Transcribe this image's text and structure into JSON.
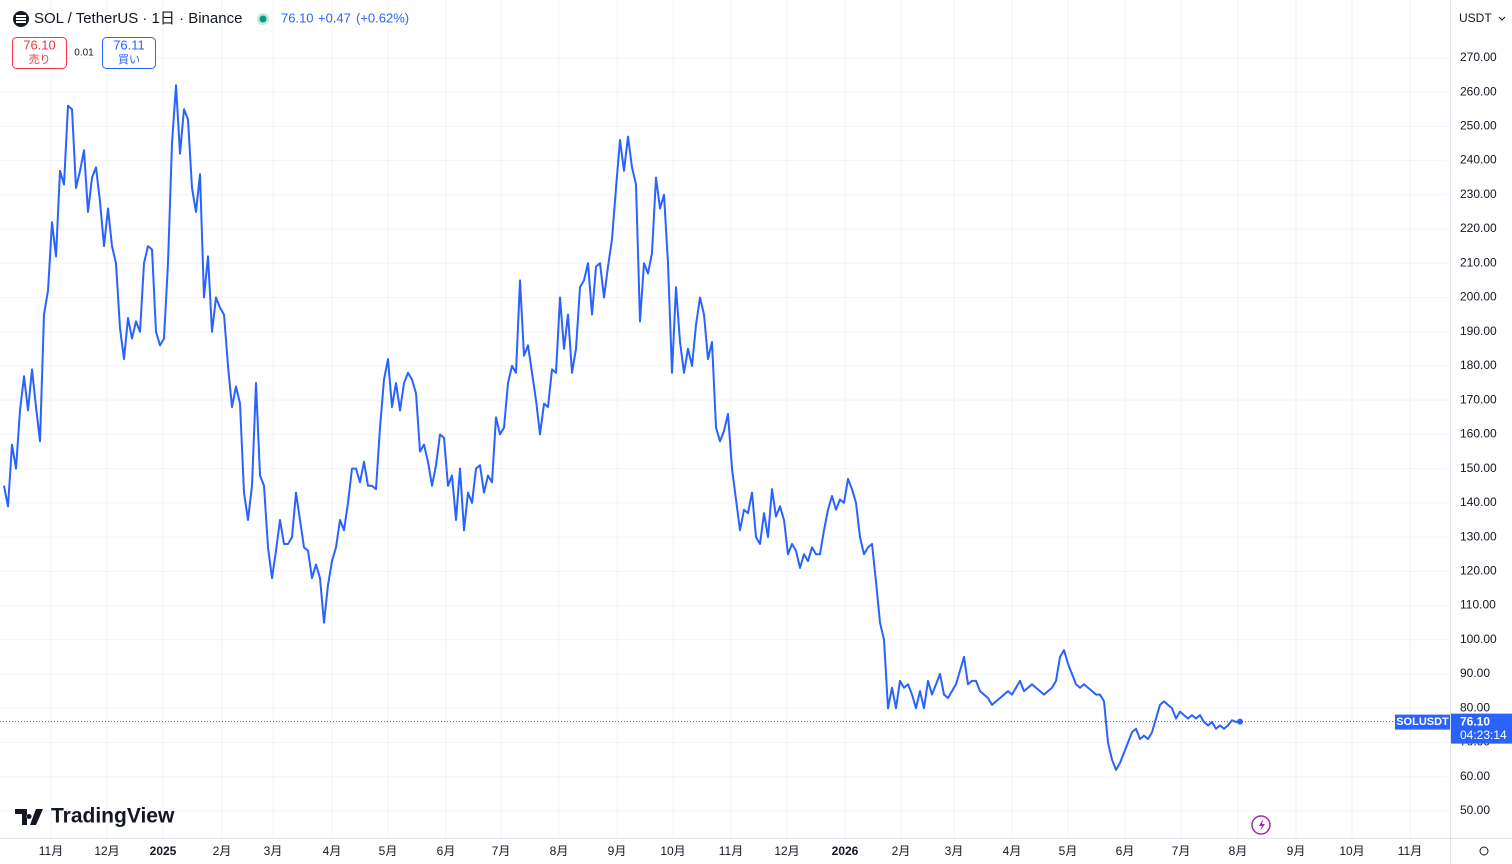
{
  "header": {
    "symbol": "SOL / TetherUS · 1日 · Binance",
    "price": "76.10",
    "change": "+0.47",
    "change_pct": "(+0.62%)",
    "sell_price": "76.10",
    "sell_label": "売り",
    "spread": "0.01",
    "buy_price": "76.11",
    "buy_label": "買い",
    "currency": "USDT",
    "logo": "TradingView"
  },
  "chart_data": {
    "type": "line",
    "series": [
      {
        "name": "SOLUSDT",
        "color": "#2962ff",
        "values": [
          145,
          139,
          157,
          150,
          167,
          177,
          167,
          179,
          168,
          158,
          195,
          202,
          222,
          212,
          237,
          233,
          256,
          255,
          232,
          237,
          243,
          225,
          235,
          238,
          228,
          215,
          226,
          215,
          210,
          191,
          182,
          194,
          188,
          193,
          190,
          210,
          215,
          214,
          190,
          186,
          188,
          210,
          245,
          262,
          242,
          255,
          252,
          232,
          225,
          236,
          200,
          212,
          190,
          200,
          197,
          195,
          180,
          168,
          174,
          169,
          143,
          135,
          145,
          175,
          148,
          145,
          127,
          118,
          126,
          135,
          128,
          128,
          130,
          143,
          135,
          127,
          126,
          118,
          122,
          118,
          105,
          116,
          123,
          127,
          135,
          132,
          140,
          150,
          150,
          146,
          152,
          145,
          145,
          144,
          162,
          176,
          182,
          168,
          175,
          167,
          175,
          178,
          176,
          172,
          155,
          157,
          152,
          145,
          151,
          160,
          159,
          145,
          148,
          135,
          150,
          132,
          143,
          140,
          150,
          151,
          143,
          148,
          146,
          165,
          160,
          162,
          175,
          180,
          178,
          205,
          183,
          186,
          178,
          170,
          160,
          169,
          168,
          179,
          178,
          200,
          185,
          195,
          178,
          185,
          203,
          205,
          210,
          195,
          209,
          210,
          200,
          209,
          217,
          232,
          246,
          237,
          247,
          238,
          233,
          193,
          210,
          207,
          213,
          235,
          226,
          230,
          210,
          178,
          203,
          187,
          178,
          185,
          180,
          192,
          200,
          195,
          182,
          187,
          162,
          158,
          161,
          166,
          150,
          141,
          132,
          138,
          137,
          143,
          130,
          128,
          137,
          130,
          144,
          136,
          139,
          135,
          125,
          128,
          126,
          121,
          125,
          123,
          127,
          125,
          125,
          132,
          138,
          142,
          138,
          141,
          140,
          147,
          144,
          140,
          130,
          125,
          127,
          128,
          117,
          105,
          100,
          80,
          86,
          80,
          88,
          86,
          87,
          84,
          80,
          85,
          80,
          88,
          84,
          87,
          90,
          84,
          83,
          85,
          87,
          91,
          95,
          87,
          88,
          88,
          85,
          84,
          83,
          81,
          82,
          83,
          84,
          85,
          84,
          86,
          88,
          85,
          86,
          87,
          86,
          85,
          84,
          85,
          86,
          88,
          95,
          97,
          93,
          90,
          87,
          86,
          87,
          86,
          85,
          84,
          84,
          82,
          70,
          65,
          62,
          64,
          67,
          70,
          73,
          74,
          71,
          72,
          71,
          73,
          77,
          81,
          82,
          81,
          80,
          77,
          79,
          78,
          77,
          78,
          77,
          78,
          76,
          75,
          76,
          74,
          75,
          74,
          75,
          76.5,
          76,
          76.1
        ]
      }
    ],
    "xticks": [
      {
        "value": 11.75,
        "label": "11月"
      },
      {
        "value": 25.75,
        "label": "12月"
      },
      {
        "value": 39.75,
        "label": "2025"
      },
      {
        "value": 54.5,
        "label": "2月"
      },
      {
        "value": 67.25,
        "label": "3月"
      },
      {
        "value": 82,
        "label": "4月"
      },
      {
        "value": 96,
        "label": "5月"
      },
      {
        "value": 110.5,
        "label": "6月"
      },
      {
        "value": 124.25,
        "label": "7月"
      },
      {
        "value": 138.75,
        "label": "8月"
      },
      {
        "value": 153.25,
        "label": "9月"
      },
      {
        "value": 167.25,
        "label": "10月"
      },
      {
        "value": 181.75,
        "label": "11月"
      },
      {
        "value": 195.75,
        "label": "12月"
      },
      {
        "value": 210.25,
        "label": "2026"
      },
      {
        "value": 224.25,
        "label": "2月"
      },
      {
        "value": 237.5,
        "label": "3月"
      },
      {
        "value": 252,
        "label": "4月"
      },
      {
        "value": 266,
        "label": "5月"
      },
      {
        "value": 280.25,
        "label": "6月"
      },
      {
        "value": 294.25,
        "label": "7月"
      },
      {
        "value": 308.5,
        "label": "8月"
      },
      {
        "value": 323,
        "label": "9月"
      },
      {
        "value": 337,
        "label": "10月"
      },
      {
        "value": 351.5,
        "label": "11月"
      }
    ],
    "xlim": [
      -1,
      361.5
    ],
    "ylim": [
      42.1,
      286.9
    ],
    "yticks": [
      {
        "value": 50,
        "label": "50.00"
      },
      {
        "value": 60,
        "label": "60.00"
      },
      {
        "value": 70,
        "label": "70.00"
      },
      {
        "value": 80,
        "label": "80.00"
      },
      {
        "value": 90,
        "label": "90.00"
      },
      {
        "value": 100,
        "label": "100.00"
      },
      {
        "value": 110,
        "label": "110.00"
      },
      {
        "value": 120,
        "label": "120.00"
      },
      {
        "value": 130,
        "label": "130.00"
      },
      {
        "value": 140,
        "label": "140.00"
      },
      {
        "value": 150,
        "label": "150.00"
      },
      {
        "value": 160,
        "label": "160.00"
      },
      {
        "value": 170,
        "label": "170.00"
      },
      {
        "value": 180,
        "label": "180.00"
      },
      {
        "value": 190,
        "label": "190.00"
      },
      {
        "value": 200,
        "label": "200.00"
      },
      {
        "value": 210,
        "label": "210.00"
      },
      {
        "value": 220,
        "label": "220.00"
      },
      {
        "value": 230,
        "label": "230.00"
      },
      {
        "value": 240,
        "label": "240.00"
      },
      {
        "value": 250,
        "label": "250.00"
      },
      {
        "value": 260,
        "label": "260.00"
      },
      {
        "value": 270,
        "label": "270.00"
      }
    ],
    "grid": true,
    "last_price": {
      "value": 76.1,
      "label": "76.10"
    },
    "countdown": "04:23:14"
  }
}
